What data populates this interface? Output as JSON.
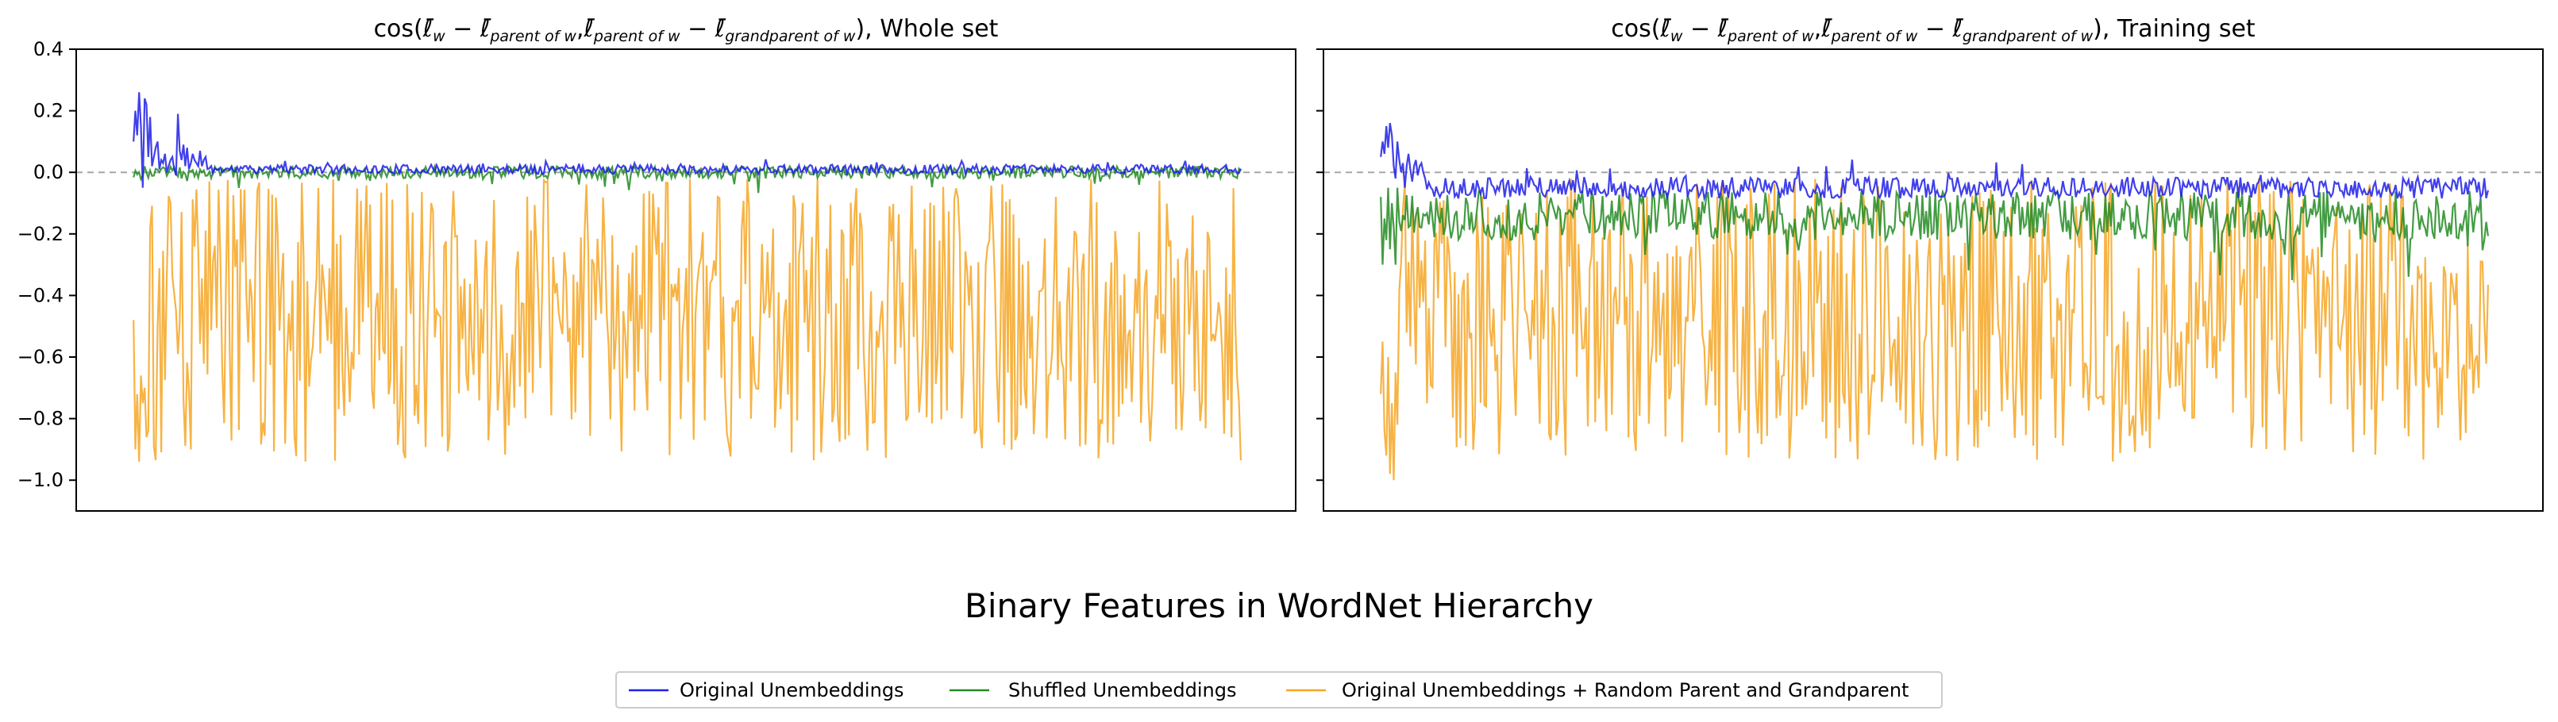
{
  "figure": {
    "suptitle": "Binary Features in WordNet Hierarchy"
  },
  "colors": {
    "original": "#1f1fe8",
    "shuffled": "#228b22",
    "random": "#f6a623",
    "zero_line": "#a6a6a6"
  },
  "chart_data": [
    {
      "type": "line",
      "title_text": {
        "cos_open": "cos(",
        "ell": "ℓ̄",
        "w": "w",
        "minus": " − ",
        "parent_of_w": "parent of w",
        "comma": ",",
        "grandparent_of_w": "grandparent of w",
        "close_suffix": "), Whole set"
      },
      "ylim": [
        -1.1,
        0.4
      ],
      "yticks": [
        0.4,
        0.2,
        0.0,
        -0.2,
        -0.4,
        -0.6,
        -0.8,
        -1.0
      ],
      "ytick_labels": [
        "0.4",
        "0.2",
        "0.0",
        "−0.2",
        "−0.4",
        "−0.6",
        "−0.8",
        "−1.0"
      ],
      "xticks_visible": false,
      "reference_line": 0.0,
      "n_points": 600,
      "series": [
        {
          "name": "Original Unembeddings",
          "key": "original",
          "base": 0.01,
          "spread": 0.015,
          "head": [
            0.1,
            0.2,
            0.12,
            0.26,
            0.15,
            -0.05,
            0.24,
            0.22,
            0.05,
            0.18,
            0.02,
            0.05,
            0.08,
            0.1,
            0.01,
            0.04,
            0.03,
            0.06,
            0.0,
            0.02,
            0.04,
            0.05,
            0.01,
            -0.01,
            0.19,
            0.07,
            0.04,
            0.09,
            0.02,
            0.08,
            0.01,
            0.03,
            0.06,
            0.04,
            0.03,
            0.02,
            0.07,
            0.02,
            0.04,
            0.05
          ]
        },
        {
          "name": "Shuffled Unembeddings",
          "key": "shuffled",
          "base": 0.0,
          "spread": 0.02,
          "head": []
        },
        {
          "name": "Original Unembeddings + Random Parent and Grandparent",
          "key": "random",
          "base": -0.45,
          "spread": 0.2,
          "head": [
            -0.48,
            -0.9,
            -0.72,
            -0.94,
            -0.66,
            -0.75,
            -0.7,
            -0.86,
            -0.84
          ]
        }
      ]
    },
    {
      "type": "line",
      "title_text": {
        "cos_open": "cos(",
        "ell": "ℓ̄",
        "w": "w",
        "minus": " − ",
        "parent_of_w": "parent of w",
        "comma": ",",
        "grandparent_of_w": "grandparent of w",
        "close_suffix": "), Training set"
      },
      "ylim": [
        -1.1,
        0.4
      ],
      "yticks": [
        0.4,
        0.2,
        0.0,
        -0.2,
        -0.4,
        -0.6,
        -0.8,
        -1.0
      ],
      "ytick_labels": [
        "0.4",
        "0.2",
        "0.0",
        "−0.2",
        "−0.4",
        "−0.6",
        "−0.8",
        "−1.0"
      ],
      "xticks_visible": false,
      "reference_line": 0.0,
      "n_points": 600,
      "series": [
        {
          "name": "Original Unembeddings",
          "key": "original",
          "base": -0.05,
          "spread": 0.035,
          "head": [
            0.05,
            0.1,
            0.06,
            0.15,
            0.08,
            0.16,
            0.12,
            0.02,
            -0.02,
            0.1,
            0.04,
            0.0,
            0.03,
            -0.05,
            0.02,
            0.06,
            0.01,
            -0.03,
            0.02,
            0.04,
            -0.01,
            0.02,
            0.03,
            0.0,
            -0.02
          ]
        },
        {
          "name": "Shuffled Unembeddings",
          "key": "shuffled",
          "base": -0.14,
          "spread": 0.08,
          "head": [
            -0.08,
            -0.3,
            -0.15,
            -0.22,
            -0.05,
            -0.25,
            -0.1,
            -0.18,
            -0.3,
            -0.05
          ]
        },
        {
          "name": "Original Unembeddings + Random Parent and Grandparent",
          "key": "random",
          "base": -0.45,
          "spread": 0.2,
          "head": [
            -0.72,
            -0.55,
            -0.84,
            -0.92,
            -0.6,
            -0.98,
            -0.75,
            -1.0,
            -0.65,
            -0.82
          ]
        }
      ]
    }
  ],
  "legend": {
    "items": [
      {
        "label": "Original Unembeddings",
        "key": "original"
      },
      {
        "label": "Shuffled Unembeddings",
        "key": "shuffled"
      },
      {
        "label": "Original Unembeddings + Random Parent and Grandparent",
        "key": "random"
      }
    ]
  }
}
